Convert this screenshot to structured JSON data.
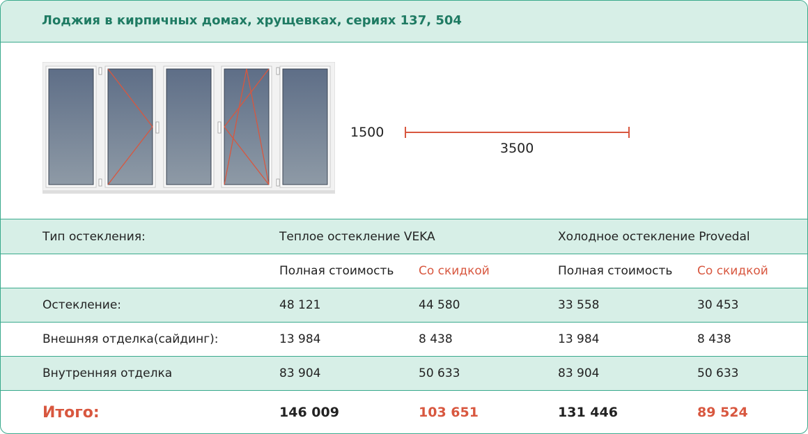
{
  "header": {
    "title": "Лоджия в кирпичных домах, хрущевках, сериях 137, 504"
  },
  "drawing": {
    "height_label": "1500",
    "width_label": "3500"
  },
  "table": {
    "type_label": "Тип остекления:",
    "warm_label": "Теплое остекление VEKA",
    "cold_label": "Холодное остекление Provedal",
    "full_price_label": "Полная стоимость",
    "discount_label": "Со скидкой",
    "rows": [
      {
        "label": "Остекление:",
        "values": [
          "48 121",
          "44 580",
          "33 558",
          "30 453"
        ]
      },
      {
        "label": "Внешняя отделка(сайдинг):",
        "values": [
          "13 984",
          "8 438",
          "13 984",
          "8 438"
        ]
      },
      {
        "label": "Внутренняя отделка",
        "values": [
          "83 904",
          "50 633",
          "83 904",
          "50 633"
        ]
      }
    ],
    "total": {
      "label": "Итого:",
      "values": [
        "146 009",
        "103 651",
        "131 446",
        "89 524"
      ]
    }
  },
  "colors": {
    "accent": "#d8573f",
    "brand": "#1f7b63",
    "row_fill": "#d7efe7",
    "border": "#39a98c"
  }
}
